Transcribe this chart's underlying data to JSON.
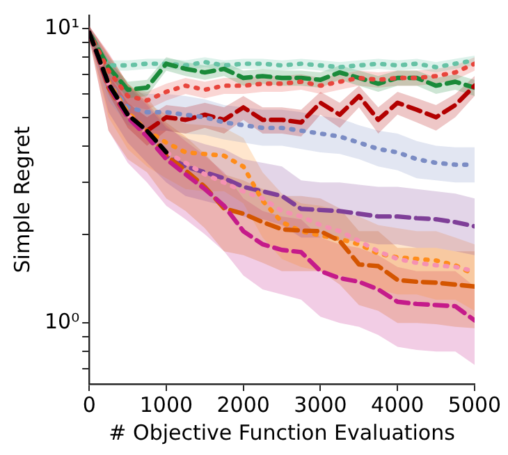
{
  "chart_data": {
    "type": "line",
    "xlabel": "# Objective Function Evaluations",
    "ylabel": "Simple Regret",
    "log": "y",
    "grid": false,
    "legend": false,
    "marker": "none",
    "xlim": [
      0,
      5000
    ],
    "xticks": [
      0,
      1000,
      2000,
      3000,
      4000,
      5000
    ],
    "ylim": [
      0.62,
      11.1
    ],
    "yticks": [
      {
        "value": 0.7,
        "label": null
      },
      {
        "value": 0.8,
        "label": null
      },
      {
        "value": 0.9,
        "label": null
      },
      {
        "value": 1,
        "label": "10⁰"
      },
      {
        "value": 2,
        "label": null
      },
      {
        "value": 3,
        "label": null
      },
      {
        "value": 4,
        "label": null
      },
      {
        "value": 5,
        "label": null
      },
      {
        "value": 6,
        "label": null
      },
      {
        "value": 7,
        "label": null
      },
      {
        "value": 8,
        "label": null
      },
      {
        "value": 9,
        "label": null
      },
      {
        "value": 10,
        "label": "10¹"
      }
    ],
    "x": [
      0,
      250,
      500,
      750,
      1000,
      1250,
      1500,
      1750,
      2000,
      2250,
      2500,
      2750,
      3000,
      3250,
      3500,
      3750,
      4000,
      4250,
      4500,
      4750,
      5000
    ],
    "series": [
      {
        "color": "#66c2a5",
        "line_style": "dotted",
        "values": [
          9.7,
          7.5,
          7.5,
          7.6,
          7.6,
          7.5,
          7.7,
          7.5,
          7.6,
          7.6,
          7.5,
          7.6,
          7.5,
          7.4,
          7.5,
          7.6,
          7.5,
          7.6,
          7.4,
          7.6,
          7.8
        ],
        "lower": [
          9.4,
          7.2,
          7.2,
          7.3,
          7.3,
          7.2,
          7.4,
          7.2,
          7.3,
          7.3,
          7.2,
          7.3,
          7.2,
          7.1,
          7.2,
          7.3,
          7.2,
          7.3,
          7.1,
          7.3,
          7.5
        ],
        "upper": [
          10.0,
          7.8,
          7.8,
          7.9,
          7.9,
          7.8,
          8.0,
          7.8,
          7.9,
          7.9,
          7.8,
          7.9,
          7.8,
          7.7,
          7.8,
          7.9,
          7.8,
          7.9,
          7.7,
          7.9,
          8.1
        ]
      },
      {
        "color": "#1a8a3a",
        "line_style": "dashed",
        "values": [
          9.7,
          7.4,
          6.2,
          6.3,
          7.6,
          7.3,
          7.1,
          7.3,
          6.8,
          6.9,
          6.8,
          6.8,
          6.7,
          7.1,
          6.8,
          6.5,
          6.8,
          6.8,
          6.4,
          6.6,
          6.3
        ],
        "lower": [
          9.3,
          7.0,
          5.8,
          5.9,
          7.2,
          6.9,
          6.7,
          6.9,
          6.4,
          6.5,
          6.4,
          6.4,
          6.3,
          6.7,
          6.4,
          6.1,
          6.4,
          6.4,
          6.0,
          6.2,
          5.9
        ],
        "upper": [
          10.1,
          7.8,
          6.6,
          6.7,
          8.0,
          7.7,
          7.5,
          7.7,
          7.2,
          7.3,
          7.2,
          7.2,
          7.1,
          7.5,
          7.2,
          6.9,
          7.2,
          7.2,
          6.8,
          7.0,
          6.7
        ]
      },
      {
        "color": "#e8453c",
        "line_style": "dotted",
        "values": [
          9.7,
          7.2,
          5.9,
          5.7,
          6.1,
          6.4,
          6.2,
          6.4,
          6.4,
          6.5,
          6.5,
          6.6,
          6.4,
          6.6,
          6.8,
          6.7,
          6.8,
          6.8,
          6.9,
          7.1,
          7.6
        ],
        "lower": [
          9.3,
          6.8,
          5.5,
          5.3,
          5.7,
          6.0,
          5.8,
          6.0,
          6.0,
          6.1,
          6.1,
          6.2,
          6.0,
          6.2,
          6.4,
          6.3,
          6.4,
          6.4,
          6.5,
          6.7,
          7.2
        ],
        "upper": [
          10.1,
          7.6,
          6.3,
          6.1,
          6.5,
          6.8,
          6.6,
          6.8,
          6.8,
          6.9,
          6.9,
          7.0,
          6.8,
          7.0,
          7.2,
          7.1,
          7.2,
          7.2,
          7.3,
          7.5,
          8.0
        ]
      },
      {
        "color": "#b30000",
        "line_style": "dashed",
        "values": [
          9.7,
          6.5,
          5.1,
          4.5,
          5.0,
          4.9,
          5.1,
          4.9,
          5.4,
          4.9,
          4.9,
          4.8,
          5.6,
          5.1,
          5.9,
          4.9,
          5.6,
          5.3,
          5.0,
          5.5,
          6.4
        ],
        "lower": [
          9.2,
          6.0,
          4.6,
          4.0,
          4.5,
          4.4,
          4.6,
          4.4,
          4.9,
          4.4,
          4.4,
          4.3,
          5.1,
          4.6,
          5.4,
          4.4,
          5.1,
          4.8,
          4.5,
          5.0,
          5.9
        ],
        "upper": [
          10.2,
          7.0,
          5.6,
          5.0,
          5.5,
          5.4,
          5.6,
          5.4,
          5.9,
          5.4,
          5.4,
          5.3,
          6.1,
          5.6,
          6.4,
          5.4,
          6.1,
          5.8,
          5.5,
          6.0,
          6.9
        ]
      },
      {
        "color": "#7b8cc4",
        "line_style": "dotted",
        "values": [
          9.7,
          6.6,
          5.4,
          5.2,
          5.2,
          5.1,
          5.0,
          4.8,
          4.7,
          4.6,
          4.6,
          4.5,
          4.4,
          4.3,
          4.1,
          3.9,
          3.8,
          3.6,
          3.5,
          3.45,
          3.45
        ],
        "lower": [
          9.2,
          5.7,
          4.7,
          4.5,
          4.5,
          4.4,
          4.35,
          4.2,
          4.1,
          4.0,
          4.0,
          3.9,
          3.8,
          3.75,
          3.6,
          3.4,
          3.3,
          3.1,
          3.05,
          3.0,
          3.0
        ],
        "upper": [
          10.2,
          7.6,
          6.2,
          6.0,
          6.0,
          5.9,
          5.75,
          5.5,
          5.4,
          5.3,
          5.3,
          5.2,
          5.05,
          4.95,
          4.7,
          4.5,
          4.4,
          4.15,
          4.0,
          3.95,
          3.95
        ]
      },
      {
        "color": "#7f3f98",
        "line_style": "dashed",
        "values": [
          9.7,
          6.5,
          5.1,
          4.4,
          3.7,
          3.4,
          3.25,
          3.1,
          2.9,
          2.8,
          2.7,
          2.44,
          2.42,
          2.4,
          2.35,
          2.3,
          2.3,
          2.27,
          2.25,
          2.2,
          2.13
        ],
        "lower": [
          9.2,
          5.2,
          4.1,
          3.5,
          3.0,
          2.7,
          2.6,
          2.5,
          2.3,
          2.25,
          2.15,
          1.95,
          1.95,
          1.9,
          1.9,
          1.85,
          1.85,
          1.8,
          1.8,
          1.75,
          1.7
        ],
        "upper": [
          10.2,
          8.1,
          6.4,
          5.5,
          4.6,
          4.25,
          4.05,
          3.9,
          3.6,
          3.5,
          3.4,
          3.05,
          3.0,
          3.0,
          2.95,
          2.9,
          2.9,
          2.85,
          2.8,
          2.75,
          2.65
        ]
      },
      {
        "color": "#ff8c1a",
        "line_style": "dotted",
        "values": [
          9.7,
          6.6,
          5.2,
          4.5,
          4.1,
          3.8,
          3.75,
          3.7,
          3.4,
          2.6,
          2.2,
          2.05,
          1.98,
          1.93,
          1.85,
          1.72,
          1.67,
          1.65,
          1.63,
          1.57,
          1.46
        ],
        "lower": [
          9.2,
          5.0,
          3.9,
          3.4,
          3.1,
          2.85,
          2.8,
          2.8,
          2.55,
          1.95,
          1.65,
          1.55,
          1.5,
          1.45,
          1.4,
          1.3,
          1.25,
          1.25,
          1.2,
          1.2,
          1.1
        ],
        "upper": [
          10.2,
          8.2,
          6.5,
          5.6,
          5.1,
          4.75,
          4.7,
          4.6,
          4.25,
          3.25,
          2.75,
          2.55,
          2.5,
          2.4,
          2.3,
          2.15,
          2.1,
          2.05,
          2.05,
          1.95,
          1.85
        ]
      },
      {
        "color": "#f591b2",
        "line_style": "dotted",
        "values": [
          9.7,
          6.5,
          5.1,
          4.4,
          3.8,
          3.5,
          3.2,
          3.0,
          2.8,
          2.65,
          2.4,
          2.3,
          2.15,
          2.05,
          1.9,
          1.75,
          1.65,
          1.6,
          1.57,
          1.55,
          1.5
        ]
      },
      {
        "color": "#d45500",
        "line_style": "dashed",
        "values": [
          9.7,
          6.3,
          5.0,
          4.5,
          3.7,
          3.3,
          2.9,
          2.45,
          2.35,
          2.2,
          2.08,
          2.06,
          2.05,
          1.9,
          1.58,
          1.56,
          1.4,
          1.38,
          1.37,
          1.35,
          1.33
        ],
        "lower": [
          9.2,
          4.5,
          3.6,
          3.25,
          2.65,
          2.4,
          2.1,
          1.75,
          1.7,
          1.6,
          1.5,
          1.5,
          1.5,
          1.35,
          1.15,
          1.1,
          1.0,
          1.0,
          0.99,
          0.97,
          0.96
        ],
        "upper": [
          10.2,
          8.2,
          6.5,
          5.85,
          4.8,
          4.3,
          3.75,
          3.2,
          3.05,
          2.85,
          2.7,
          2.7,
          2.65,
          2.45,
          2.05,
          2.05,
          1.8,
          1.8,
          1.8,
          1.75,
          1.75
        ]
      },
      {
        "color": "#c51b8a",
        "line_style": "dashed",
        "values": [
          9.7,
          6.4,
          5.0,
          4.3,
          3.6,
          3.2,
          2.85,
          2.5,
          2.05,
          1.85,
          1.77,
          1.74,
          1.5,
          1.42,
          1.38,
          1.3,
          1.18,
          1.16,
          1.15,
          1.14,
          1.02
        ],
        "lower": [
          9.2,
          4.5,
          3.5,
          3.0,
          2.5,
          2.25,
          2.0,
          1.75,
          1.45,
          1.3,
          1.25,
          1.2,
          1.05,
          1.0,
          0.97,
          0.91,
          0.83,
          0.81,
          0.8,
          0.8,
          0.72
        ],
        "upper": [
          10.2,
          8.3,
          6.5,
          5.6,
          4.7,
          4.15,
          3.7,
          3.25,
          2.65,
          2.4,
          2.3,
          2.25,
          1.95,
          1.85,
          1.8,
          1.7,
          1.55,
          1.5,
          1.5,
          1.5,
          1.33
        ]
      },
      {
        "color": "#000000",
        "line_style": "dashed",
        "x": [
          0,
          250,
          500,
          750,
          1000
        ],
        "values": [
          9.7,
          6.5,
          5.1,
          4.5,
          3.8
        ]
      }
    ]
  }
}
